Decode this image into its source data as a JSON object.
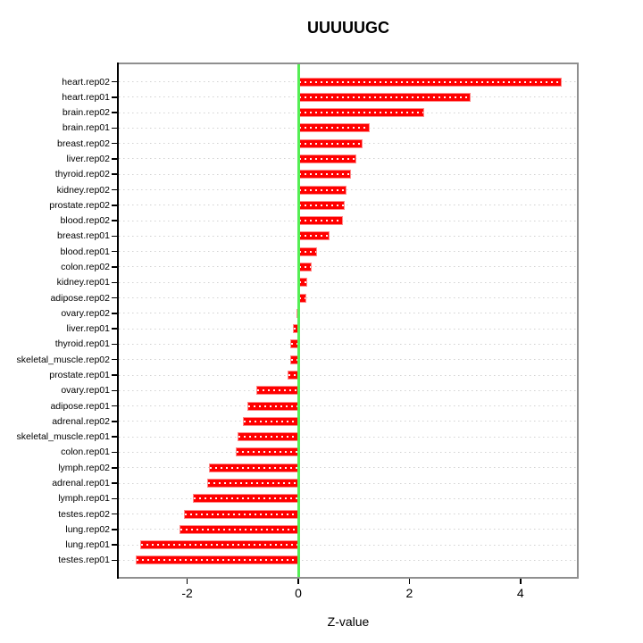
{
  "chart_data": {
    "type": "bar",
    "orientation": "horizontal",
    "title": "UUUUUGC",
    "xlabel": "Z-value",
    "ylabel": "",
    "categories": [
      "heart.rep02",
      "heart.rep01",
      "brain.rep02",
      "brain.rep01",
      "breast.rep02",
      "liver.rep02",
      "thyroid.rep02",
      "kidney.rep02",
      "prostate.rep02",
      "blood.rep02",
      "breast.rep01",
      "blood.rep01",
      "colon.rep02",
      "kidney.rep01",
      "adipose.rep02",
      "ovary.rep02",
      "liver.rep01",
      "thyroid.rep01",
      "skeletal_muscle.rep02",
      "prostate.rep01",
      "ovary.rep01",
      "adipose.rep01",
      "adrenal.rep02",
      "skeletal_muscle.rep01",
      "colon.rep01",
      "lymph.rep02",
      "adrenal.rep01",
      "lymph.rep01",
      "testes.rep02",
      "lung.rep02",
      "lung.rep01",
      "testes.rep01"
    ],
    "values": [
      4.75,
      3.1,
      2.27,
      1.29,
      1.15,
      1.04,
      0.95,
      0.87,
      0.83,
      0.81,
      0.56,
      0.33,
      0.24,
      0.16,
      0.14,
      -0.04,
      -0.09,
      -0.14,
      -0.15,
      -0.2,
      -0.76,
      -0.91,
      -1.0,
      -1.09,
      -1.12,
      -1.61,
      -1.64,
      -1.89,
      -2.06,
      -2.14,
      -2.85,
      -2.93
    ],
    "x_ticks": [
      -2,
      0,
      2,
      4
    ],
    "xlim": [
      -3.25,
      5.05
    ],
    "grid": true,
    "legend_position": "none",
    "colors": {
      "bar_fill": "#ff0000",
      "bar_border": "#ff8a8a",
      "zero_line": "#55ee55",
      "grid_line": "#d2d2d2",
      "box_border": "#8f8f8f",
      "axis": "#000000",
      "background": "#ffffff"
    }
  }
}
